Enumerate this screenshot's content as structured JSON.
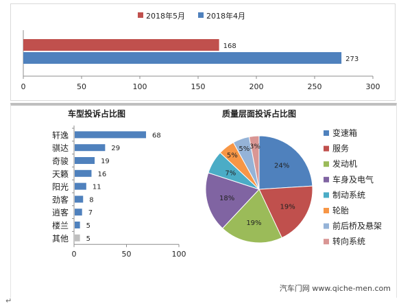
{
  "chart_data": [
    {
      "type": "bar",
      "orientation": "horizontal",
      "categories": [
        ""
      ],
      "series": [
        {
          "name": "2018年5月",
          "values": [
            168
          ],
          "color": "#c0504d"
        },
        {
          "name": "2018年4月",
          "values": [
            273
          ],
          "color": "#4f81bd"
        }
      ],
      "x_ticks": [
        "0",
        "50",
        "100",
        "150",
        "200",
        "250",
        "300"
      ],
      "xlim": [
        0,
        300
      ],
      "legend": "top",
      "data_labels": [
        "168",
        "273"
      ],
      "grid": false
    },
    {
      "type": "bar",
      "orientation": "horizontal",
      "title": "车型投诉占比图",
      "categories": [
        "轩逸",
        "骐达",
        "奇骏",
        "天籁",
        "阳光",
        "劲客",
        "逍客",
        "楼兰",
        "其他"
      ],
      "values": [
        68,
        29,
        19,
        16,
        11,
        8,
        7,
        5,
        5
      ],
      "bar_color": "#4f81bd",
      "last_bar_color": "#bfbfbf",
      "x_ticks": [
        "0",
        "50",
        "100"
      ],
      "xlim": [
        0,
        100
      ],
      "data_labels": [
        "68",
        "29",
        "19",
        "16",
        "11",
        "8",
        "7",
        "5",
        "5"
      ],
      "grid": false
    },
    {
      "type": "pie",
      "title": "质量层面投诉占比图",
      "labels": [
        "变速箱",
        "服务",
        "发动机",
        "车身及电气",
        "制动系统",
        "轮胎",
        "前后桥及悬架",
        "转向系统"
      ],
      "values": [
        24,
        19,
        19,
        18,
        7,
        5,
        5,
        3
      ],
      "value_labels": [
        "24%",
        "19%",
        "19%",
        "18%",
        "7%",
        "5%",
        "5%",
        "3%"
      ],
      "colors": [
        "#4f81bd",
        "#c0504d",
        "#9bbb59",
        "#8064a2",
        "#4bacc6",
        "#f79646",
        "#95b3d7",
        "#d99694"
      ],
      "legend": "right"
    }
  ],
  "watermark": "汽车门网 www.qiche-men.com",
  "return_mark": "↵"
}
